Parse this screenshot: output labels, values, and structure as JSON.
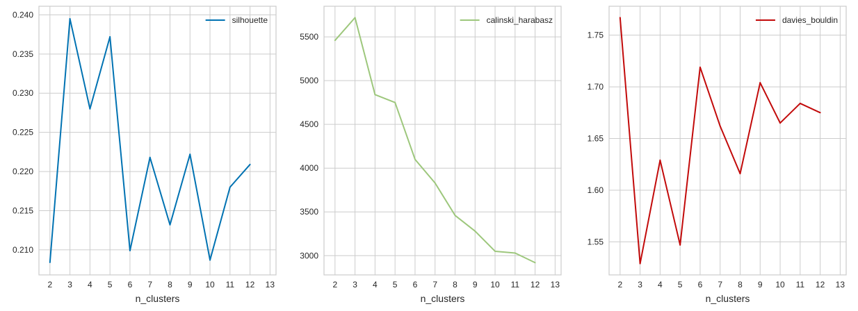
{
  "figure": {
    "background": "#ffffff"
  },
  "chart_data": [
    {
      "type": "line",
      "xlabel": "n_clusters",
      "x": [
        2,
        3,
        4,
        5,
        6,
        7,
        8,
        9,
        10,
        11,
        12
      ],
      "xticks": [
        2,
        3,
        4,
        5,
        6,
        7,
        8,
        9,
        10,
        11,
        12,
        13
      ],
      "xlim": [
        1.45,
        13.3
      ],
      "ylim": [
        0.2068,
        0.2411
      ],
      "yticks": [
        0.21,
        0.215,
        0.22,
        0.225,
        0.23,
        0.235,
        0.24
      ],
      "ytick_labels": [
        "0.210",
        "0.215",
        "0.220",
        "0.225",
        "0.230",
        "0.235",
        "0.240"
      ],
      "grid": true,
      "legend_position": "top-right",
      "series": [
        {
          "name": "silhouette",
          "color": "#0072b2",
          "values": [
            0.2084,
            0.2395,
            0.228,
            0.2372,
            0.2099,
            0.2218,
            0.2132,
            0.2222,
            0.2087,
            0.218,
            0.2209
          ]
        }
      ]
    },
    {
      "type": "line",
      "xlabel": "n_clusters",
      "x": [
        2,
        3,
        4,
        5,
        6,
        7,
        8,
        9,
        10,
        11,
        12
      ],
      "xticks": [
        2,
        3,
        4,
        5,
        6,
        7,
        8,
        9,
        10,
        11,
        12,
        13
      ],
      "xlim": [
        1.45,
        13.3
      ],
      "ylim": [
        2780,
        5850
      ],
      "yticks": [
        3000,
        3500,
        4000,
        4500,
        5000,
        5500
      ],
      "ytick_labels": [
        "3000",
        "3500",
        "4000",
        "4500",
        "5000",
        "5500"
      ],
      "grid": true,
      "legend_position": "top-right",
      "series": [
        {
          "name": "calinski_harabasz",
          "color": "#9dc77c",
          "values": [
            5460,
            5720,
            4840,
            4750,
            4100,
            3830,
            3460,
            3280,
            3050,
            3030,
            2920
          ]
        }
      ]
    },
    {
      "type": "line",
      "xlabel": "n_clusters",
      "x": [
        2,
        3,
        4,
        5,
        6,
        7,
        8,
        9,
        10,
        11,
        12
      ],
      "xticks": [
        2,
        3,
        4,
        5,
        6,
        7,
        8,
        9,
        10,
        11,
        12,
        13
      ],
      "xlim": [
        1.45,
        13.3
      ],
      "ylim": [
        1.518,
        1.778
      ],
      "yticks": [
        1.55,
        1.6,
        1.65,
        1.7,
        1.75
      ],
      "ytick_labels": [
        "1.55",
        "1.60",
        "1.65",
        "1.70",
        "1.75"
      ],
      "grid": true,
      "legend_position": "top-right",
      "series": [
        {
          "name": "davies_bouldin",
          "color": "#c20a0a",
          "values": [
            1.767,
            1.529,
            1.629,
            1.547,
            1.719,
            1.662,
            1.616,
            1.704,
            1.665,
            1.684,
            1.675
          ]
        }
      ]
    }
  ]
}
